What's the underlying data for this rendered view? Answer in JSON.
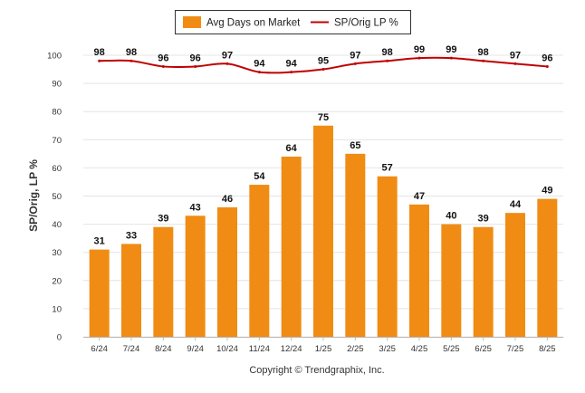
{
  "chart_data": {
    "type": "bar",
    "categories": [
      "6/24",
      "7/24",
      "8/24",
      "9/24",
      "10/24",
      "11/24",
      "12/24",
      "1/25",
      "2/25",
      "3/25",
      "4/25",
      "5/25",
      "6/25",
      "7/25",
      "8/25"
    ],
    "series": [
      {
        "name": "Avg Days on Market",
        "type": "bar",
        "color": "#f08c14",
        "values": [
          31,
          33,
          39,
          43,
          46,
          54,
          64,
          75,
          65,
          57,
          47,
          40,
          39,
          44,
          49
        ]
      },
      {
        "name": "SP/Orig LP %",
        "type": "line",
        "color": "#c00000",
        "values": [
          98,
          98,
          96,
          96,
          97,
          94,
          94,
          95,
          97,
          98,
          99,
          99,
          98,
          97,
          96
        ]
      }
    ],
    "ylabel": "SP/Orig, LP %",
    "ylim": [
      0,
      100
    ],
    "yticks": [
      0,
      10,
      20,
      30,
      40,
      50,
      60,
      70,
      80,
      90,
      100
    ],
    "grid": true,
    "legend_position": "top-center"
  },
  "footer": {
    "copyright": "Copyright © Trendgraphix, Inc."
  }
}
